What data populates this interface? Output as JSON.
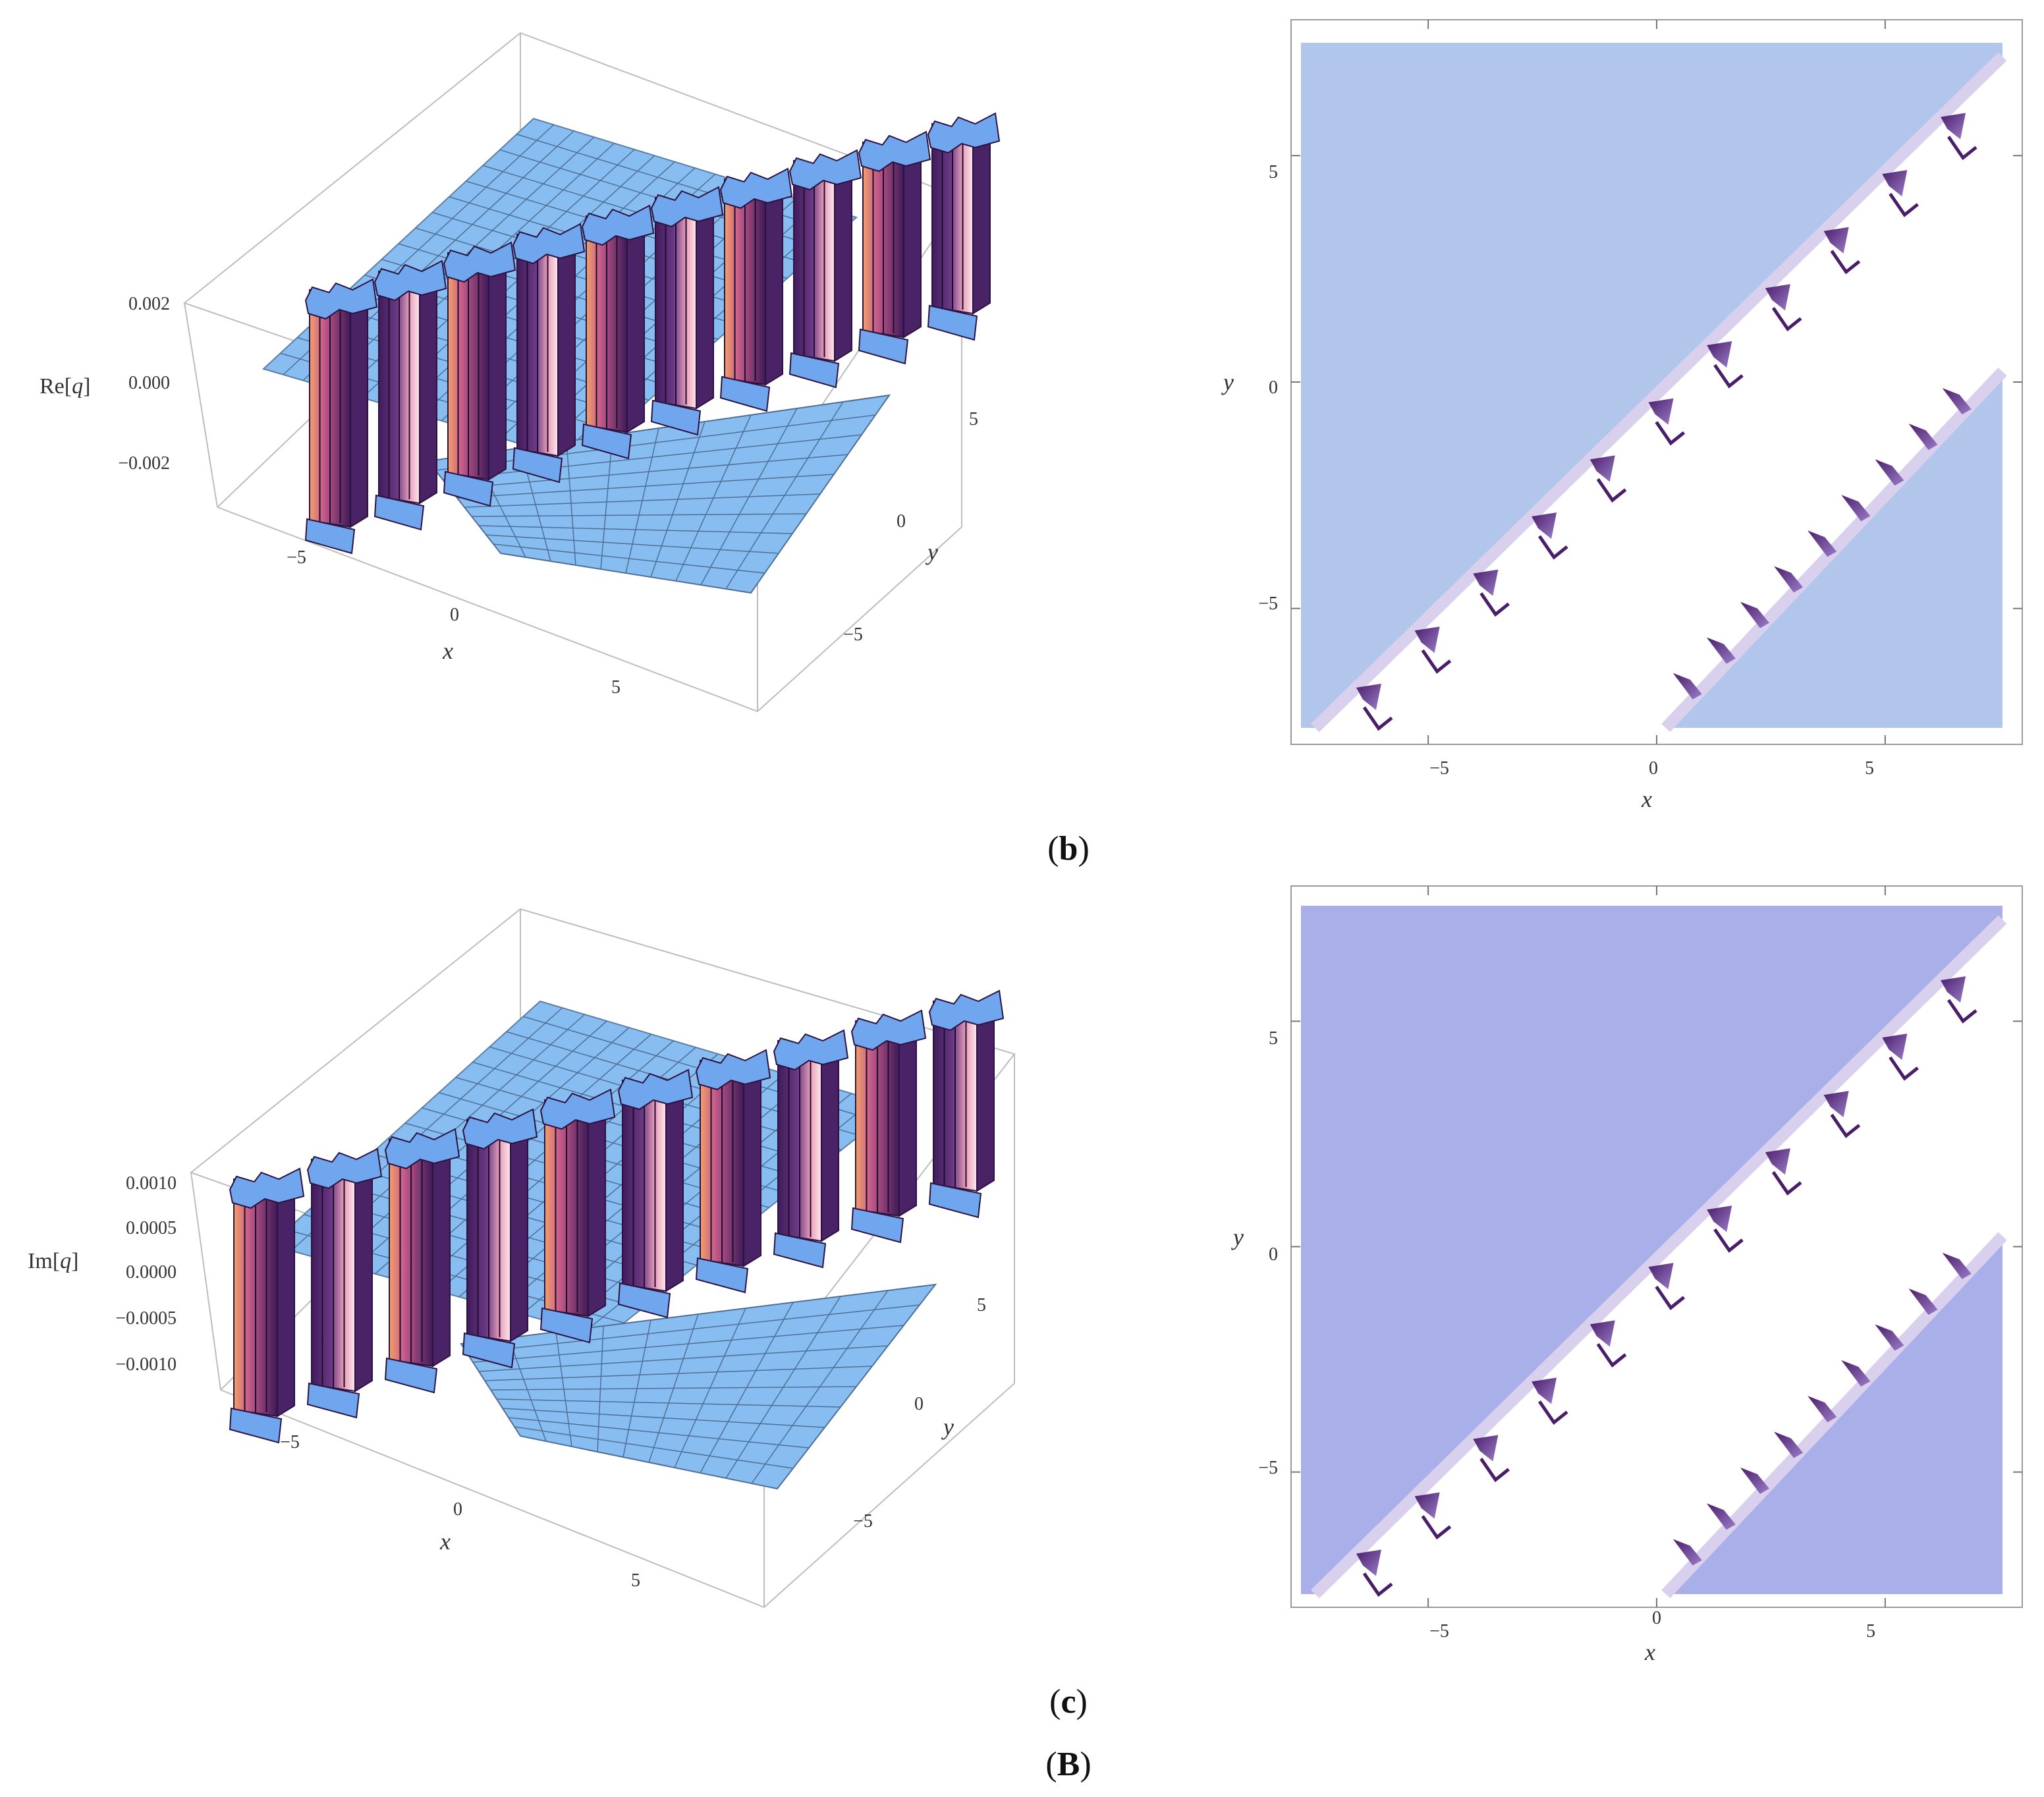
{
  "figure": {
    "panel_labels": [
      {
        "open": "(",
        "letter": "b",
        "close": ")"
      },
      {
        "open": "(",
        "letter": "c",
        "close": ")"
      },
      {
        "open": "(",
        "letter": "B",
        "close": ")"
      }
    ]
  },
  "chart_data": [
    {
      "type": "surface3d",
      "zlabel_pre": "Re[",
      "zlabel_var": "q",
      "zlabel_post": "]",
      "xlabel": "x",
      "ylabel": "y",
      "x_ticks": [
        "−5",
        "0",
        "5"
      ],
      "y_ticks": [
        "−5",
        "0",
        "5"
      ],
      "z_ticks": [
        "0.002",
        "0.000",
        "−0.002"
      ],
      "z_values": [
        0.002,
        0.0,
        -0.002
      ],
      "xlim": [
        -8,
        8
      ],
      "ylim": [
        -8,
        8
      ],
      "colors": {
        "surface": "#87bdf0",
        "walls": "#5a2d70",
        "highlight": "#f6a6b8"
      }
    },
    {
      "type": "heatmap",
      "xlabel": "x",
      "ylabel": "y",
      "x_ticks": [
        "−5",
        "0",
        "5"
      ],
      "y_ticks": [
        "5",
        "0",
        "−5"
      ],
      "tick_values": [
        -5,
        0,
        5
      ],
      "xlim": [
        -8,
        8
      ],
      "ylim": [
        -8,
        8
      ],
      "colors": {
        "background": "#b2c5ea",
        "band": "#ffffff",
        "edge": "#4a1d6a"
      }
    },
    {
      "type": "surface3d",
      "zlabel_pre": "Im[",
      "zlabel_var": "q",
      "zlabel_post": "]",
      "xlabel": "x",
      "ylabel": "y",
      "x_ticks": [
        "−5",
        "0",
        "5"
      ],
      "y_ticks": [
        "−5",
        "0",
        "5"
      ],
      "z_ticks": [
        "0.0010",
        "0.0005",
        "0.0000",
        "−0.0005",
        "−0.0010"
      ],
      "z_values": [
        0.001,
        0.0005,
        0.0,
        -0.0005,
        -0.001
      ],
      "xlim": [
        -8,
        8
      ],
      "ylim": [
        -8,
        8
      ],
      "colors": {
        "surface": "#87bdf0",
        "walls": "#5a2d70",
        "highlight": "#f6a6b8"
      }
    },
    {
      "type": "heatmap",
      "xlabel": "x",
      "ylabel": "y",
      "x_ticks": [
        "−5",
        "0",
        "5"
      ],
      "y_ticks": [
        "5",
        "0",
        "−5"
      ],
      "tick_values": [
        -5,
        0,
        5
      ],
      "xlim": [
        -8,
        8
      ],
      "ylim": [
        -8,
        8
      ],
      "colors": {
        "background": "#a9afe9",
        "band": "#ffffff",
        "edge": "#4a1d6a"
      }
    }
  ]
}
